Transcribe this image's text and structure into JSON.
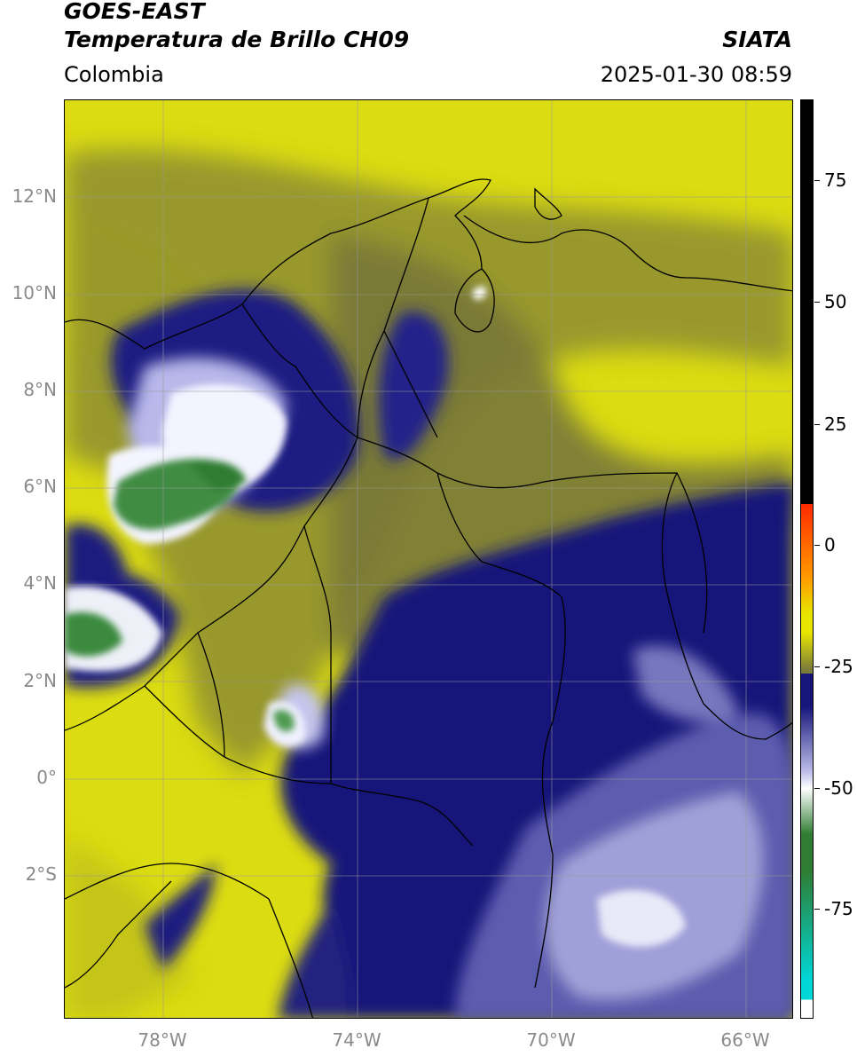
{
  "header": {
    "satellite": "GOES-EAST",
    "product": "Temperatura de Brillo CH09",
    "region": "Colombia",
    "source": "SIATA",
    "datetime": "2025-01-30 08:59"
  },
  "axes": {
    "lat_labels": [
      "12°N",
      "10°N",
      "8°N",
      "6°N",
      "4°N",
      "2°N",
      "0°",
      "2°S"
    ],
    "lon_labels": [
      "78°W",
      "74°W",
      "70°W",
      "66°W"
    ]
  },
  "colorbar": {
    "labels": [
      "75",
      "50",
      "25",
      "0",
      "-25",
      "-50",
      "-75"
    ],
    "palette": {
      "black": "#000000",
      "red": "#ff2a00",
      "orange": "#ff9a00",
      "yellow": "#e8e600",
      "olive": "#7d7d3a",
      "navy": "#15157a",
      "lavender": "#b8b8e8",
      "white": "#ffffff",
      "green": "#2e7d32",
      "cyan": "#00d8d8"
    }
  }
}
